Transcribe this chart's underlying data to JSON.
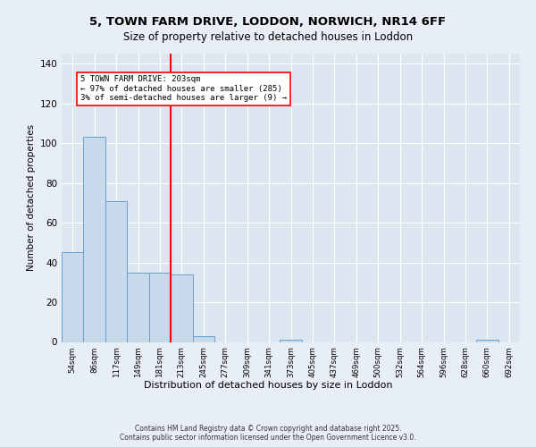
{
  "title1": "5, TOWN FARM DRIVE, LODDON, NORWICH, NR14 6FF",
  "title2": "Size of property relative to detached houses in Loddon",
  "xlabel": "Distribution of detached houses by size in Loddon",
  "ylabel": "Number of detached properties",
  "bins": [
    "54sqm",
    "86sqm",
    "117sqm",
    "149sqm",
    "181sqm",
    "213sqm",
    "245sqm",
    "277sqm",
    "309sqm",
    "341sqm",
    "373sqm",
    "405sqm",
    "437sqm",
    "469sqm",
    "500sqm",
    "532sqm",
    "564sqm",
    "596sqm",
    "628sqm",
    "660sqm",
    "692sqm"
  ],
  "values": [
    45,
    103,
    71,
    35,
    35,
    34,
    3,
    0,
    0,
    0,
    1,
    0,
    0,
    0,
    0,
    0,
    0,
    0,
    0,
    1,
    0
  ],
  "bar_color": "#c8d9ec",
  "bar_edge_color": "#6aa0cc",
  "red_line_x": 4.5,
  "annotation_box_text": "5 TOWN FARM DRIVE: 203sqm\n← 97% of detached houses are smaller (285)\n3% of semi-detached houses are larger (9) →",
  "ylim": [
    0,
    145
  ],
  "yticks": [
    0,
    20,
    40,
    60,
    80,
    100,
    120,
    140
  ],
  "copyright_text": "Contains HM Land Registry data © Crown copyright and database right 2025.\nContains public sector information licensed under the Open Government Licence v3.0.",
  "bg_color": "#e8eef5",
  "plot_bg_color": "#dce6f0"
}
